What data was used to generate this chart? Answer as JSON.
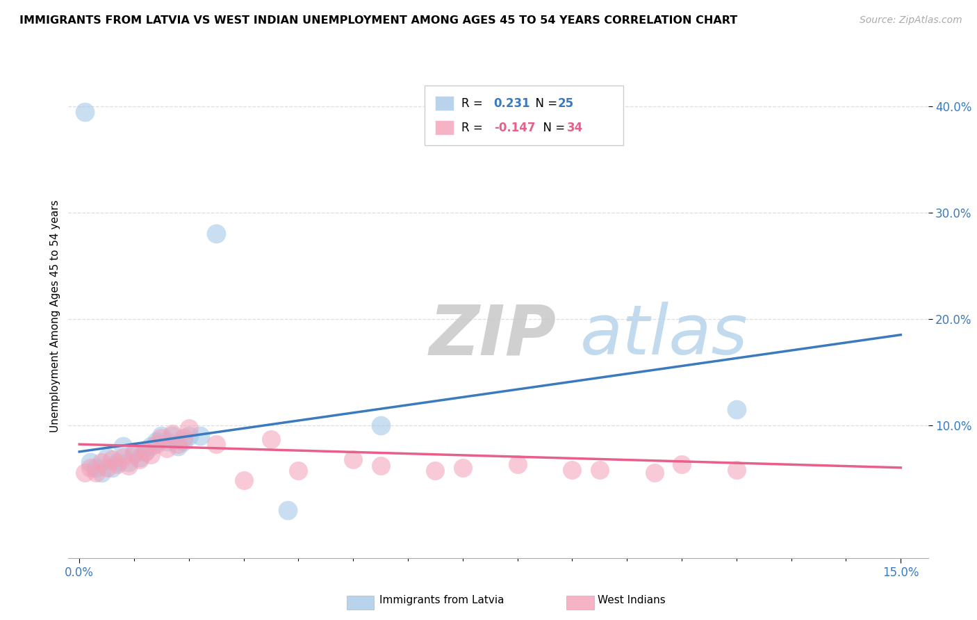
{
  "title": "IMMIGRANTS FROM LATVIA VS WEST INDIAN UNEMPLOYMENT AMONG AGES 45 TO 54 YEARS CORRELATION CHART",
  "source": "Source: ZipAtlas.com",
  "ylabel": "Unemployment Among Ages 45 to 54 years",
  "xlim": [
    -0.002,
    0.155
  ],
  "ylim": [
    -0.025,
    0.43
  ],
  "yticks": [
    0.1,
    0.2,
    0.3,
    0.4
  ],
  "ytick_labels": [
    "10.0%",
    "20.0%",
    "30.0%",
    "40.0%"
  ],
  "r_latvia": 0.231,
  "n_latvia": 25,
  "r_west_indian": -0.147,
  "n_west_indian": 34,
  "blue_scatter_color": "#a8c8e8",
  "pink_scatter_color": "#f4a0b8",
  "blue_line_color": "#3a7abf",
  "pink_line_color": "#e8608a",
  "watermark_zip_color": "#d8d8d8",
  "watermark_atlas_color": "#c8ddf0",
  "background_color": "#ffffff",
  "grid_color": "#dddddd",
  "latvia_x": [
    0.001,
    0.002,
    0.003,
    0.004,
    0.005,
    0.006,
    0.007,
    0.008,
    0.009,
    0.01,
    0.011,
    0.012,
    0.013,
    0.014,
    0.015,
    0.016,
    0.017,
    0.018,
    0.019,
    0.02,
    0.022,
    0.025,
    0.038,
    0.055,
    0.12
  ],
  "latvia_y": [
    0.395,
    0.065,
    0.06,
    0.055,
    0.07,
    0.06,
    0.065,
    0.08,
    0.065,
    0.075,
    0.07,
    0.075,
    0.08,
    0.085,
    0.09,
    0.085,
    0.09,
    0.08,
    0.085,
    0.09,
    0.09,
    0.28,
    0.02,
    0.1,
    0.115
  ],
  "wi_x": [
    0.001,
    0.002,
    0.003,
    0.004,
    0.005,
    0.006,
    0.007,
    0.008,
    0.009,
    0.01,
    0.011,
    0.012,
    0.013,
    0.014,
    0.015,
    0.016,
    0.017,
    0.018,
    0.019,
    0.02,
    0.025,
    0.03,
    0.035,
    0.04,
    0.05,
    0.055,
    0.065,
    0.07,
    0.08,
    0.09,
    0.095,
    0.105,
    0.11,
    0.12
  ],
  "wi_y": [
    0.055,
    0.06,
    0.055,
    0.065,
    0.06,
    0.068,
    0.063,
    0.07,
    0.062,
    0.073,
    0.068,
    0.075,
    0.072,
    0.082,
    0.088,
    0.078,
    0.092,
    0.082,
    0.088,
    0.097,
    0.082,
    0.048,
    0.087,
    0.057,
    0.068,
    0.062,
    0.057,
    0.06,
    0.063,
    0.058,
    0.058,
    0.055,
    0.063,
    0.058
  ],
  "latvia_trend_y0": 0.075,
  "latvia_trend_y1": 0.185,
  "wi_trend_y0": 0.082,
  "wi_trend_y1": 0.06
}
